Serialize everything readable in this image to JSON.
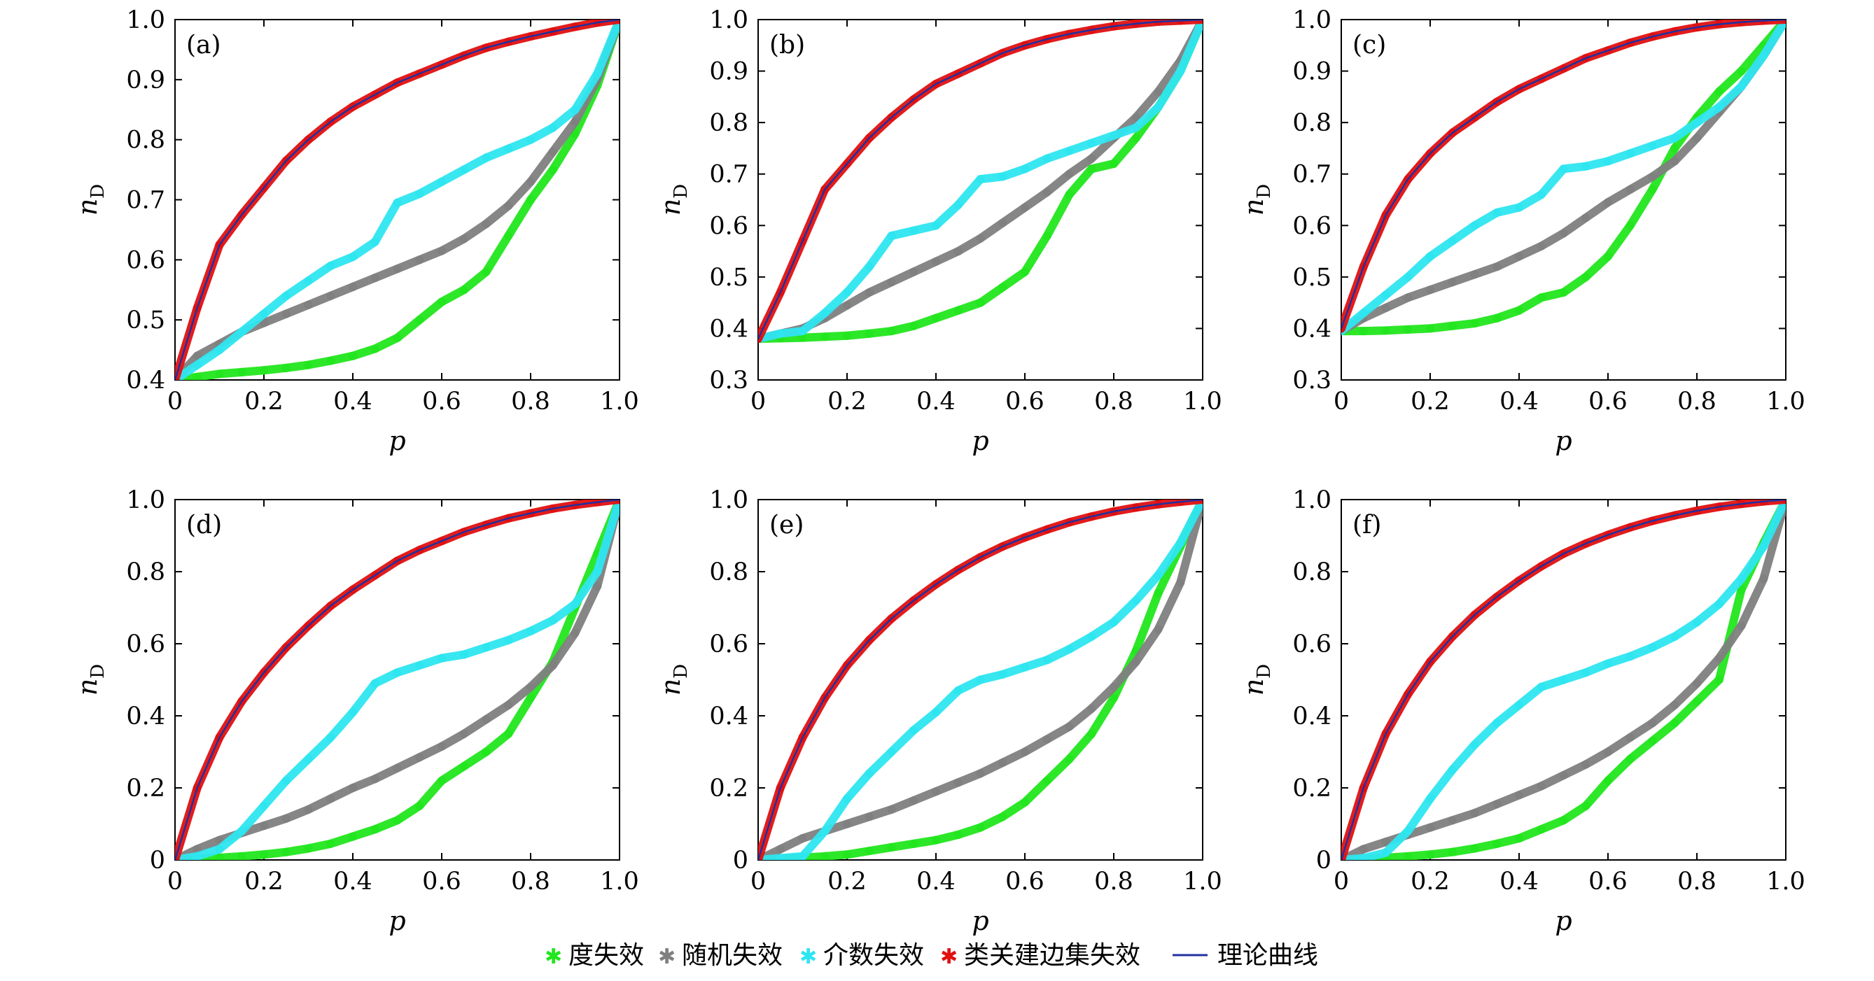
{
  "series_meta": [
    {
      "key": "degree",
      "name": "度失效",
      "color": "#22e61e"
    },
    {
      "key": "random",
      "name": "随机失效",
      "color": "#808080"
    },
    {
      "key": "betweenness",
      "name": "介数失效",
      "color": "#2ee6f0"
    },
    {
      "key": "similar",
      "name": "类关建边集失效",
      "color": "#e01010"
    },
    {
      "key": "theory",
      "name": "理论曲线",
      "color": "#2030a0"
    }
  ],
  "chart_data": [
    {
      "type": "line",
      "panel": "(a)",
      "xlabel": "p",
      "ylabel": "nD",
      "xlim": [
        0,
        1
      ],
      "ylim": [
        0.4,
        1.0
      ],
      "xticks": [
        "0",
        "0.2",
        "0.4",
        "0.6",
        "0.8",
        "1.0"
      ],
      "yticks": [
        "0.4",
        "0.5",
        "0.6",
        "0.7",
        "0.8",
        "0.9",
        "1.0"
      ],
      "x": [
        0,
        0.05,
        0.1,
        0.15,
        0.2,
        0.25,
        0.3,
        0.35,
        0.4,
        0.45,
        0.5,
        0.55,
        0.6,
        0.65,
        0.7,
        0.75,
        0.8,
        0.85,
        0.9,
        0.95,
        1.0
      ],
      "series": [
        {
          "name": "度失效",
          "values": [
            0.4,
            0.405,
            0.41,
            0.413,
            0.416,
            0.42,
            0.425,
            0.432,
            0.44,
            0.452,
            0.47,
            0.5,
            0.53,
            0.55,
            0.58,
            0.64,
            0.7,
            0.75,
            0.81,
            0.89,
            1.0
          ]
        },
        {
          "name": "随机失效",
          "values": [
            0.4,
            0.44,
            0.46,
            0.48,
            0.495,
            0.51,
            0.525,
            0.54,
            0.555,
            0.57,
            0.585,
            0.6,
            0.615,
            0.635,
            0.66,
            0.69,
            0.73,
            0.78,
            0.83,
            0.9,
            1.0
          ]
        },
        {
          "name": "介数失效",
          "values": [
            0.4,
            0.425,
            0.45,
            0.48,
            0.51,
            0.54,
            0.565,
            0.59,
            0.605,
            0.63,
            0.695,
            0.71,
            0.73,
            0.75,
            0.77,
            0.785,
            0.8,
            0.82,
            0.85,
            0.91,
            1.0
          ]
        },
        {
          "name": "类关建边集失效",
          "values": [
            0.4,
            0.52,
            0.625,
            0.675,
            0.72,
            0.765,
            0.8,
            0.83,
            0.855,
            0.875,
            0.895,
            0.91,
            0.925,
            0.94,
            0.953,
            0.963,
            0.972,
            0.98,
            0.988,
            0.995,
            1.0
          ]
        },
        {
          "name": "理论曲线",
          "values": [
            0.4,
            0.52,
            0.625,
            0.675,
            0.72,
            0.765,
            0.8,
            0.83,
            0.855,
            0.875,
            0.895,
            0.91,
            0.925,
            0.94,
            0.953,
            0.963,
            0.972,
            0.98,
            0.988,
            0.995,
            1.0
          ]
        }
      ]
    },
    {
      "type": "line",
      "panel": "(b)",
      "xlabel": "p",
      "ylabel": "nD",
      "xlim": [
        0,
        1
      ],
      "ylim": [
        0.3,
        1.0
      ],
      "xticks": [
        "0",
        "0.2",
        "0.4",
        "0.6",
        "0.8",
        "1.0"
      ],
      "yticks": [
        "0.3",
        "0.4",
        "0.5",
        "0.6",
        "0.7",
        "0.8",
        "0.9",
        "1.0"
      ],
      "x": [
        0,
        0.05,
        0.1,
        0.15,
        0.2,
        0.25,
        0.3,
        0.35,
        0.4,
        0.45,
        0.5,
        0.55,
        0.6,
        0.65,
        0.7,
        0.75,
        0.8,
        0.85,
        0.9,
        0.95,
        1.0
      ],
      "series": [
        {
          "name": "度失效",
          "values": [
            0.38,
            0.381,
            0.382,
            0.384,
            0.386,
            0.39,
            0.395,
            0.405,
            0.42,
            0.435,
            0.45,
            0.48,
            0.51,
            0.58,
            0.66,
            0.71,
            0.72,
            0.77,
            0.83,
            0.9,
            1.0
          ]
        },
        {
          "name": "随机失效",
          "values": [
            0.38,
            0.39,
            0.4,
            0.42,
            0.445,
            0.47,
            0.49,
            0.51,
            0.53,
            0.55,
            0.575,
            0.605,
            0.635,
            0.665,
            0.7,
            0.73,
            0.77,
            0.81,
            0.86,
            0.92,
            1.0
          ]
        },
        {
          "name": "介数失效",
          "values": [
            0.38,
            0.39,
            0.395,
            0.43,
            0.47,
            0.52,
            0.58,
            0.59,
            0.6,
            0.64,
            0.69,
            0.695,
            0.71,
            0.73,
            0.745,
            0.76,
            0.775,
            0.79,
            0.83,
            0.9,
            1.0
          ]
        },
        {
          "name": "类关建边集失效",
          "values": [
            0.38,
            0.47,
            0.57,
            0.67,
            0.72,
            0.77,
            0.81,
            0.845,
            0.875,
            0.895,
            0.915,
            0.935,
            0.95,
            0.962,
            0.972,
            0.98,
            0.987,
            0.992,
            0.996,
            0.998,
            1.0
          ]
        },
        {
          "name": "理论曲线",
          "values": [
            0.38,
            0.47,
            0.57,
            0.67,
            0.72,
            0.77,
            0.81,
            0.845,
            0.875,
            0.895,
            0.915,
            0.935,
            0.95,
            0.962,
            0.972,
            0.98,
            0.987,
            0.992,
            0.996,
            0.998,
            1.0
          ]
        }
      ]
    },
    {
      "type": "line",
      "panel": "(c)",
      "xlabel": "p",
      "ylabel": "nD",
      "xlim": [
        0,
        1
      ],
      "ylim": [
        0.3,
        1.0
      ],
      "xticks": [
        "0",
        "0.2",
        "0.4",
        "0.6",
        "0.8",
        "1.0"
      ],
      "yticks": [
        "0.3",
        "0.4",
        "0.5",
        "0.6",
        "0.7",
        "0.8",
        "0.9",
        "1.0"
      ],
      "x": [
        0,
        0.05,
        0.1,
        0.15,
        0.2,
        0.25,
        0.3,
        0.35,
        0.4,
        0.45,
        0.5,
        0.55,
        0.6,
        0.65,
        0.7,
        0.75,
        0.8,
        0.85,
        0.9,
        0.95,
        1.0
      ],
      "series": [
        {
          "name": "度失效",
          "values": [
            0.395,
            0.395,
            0.396,
            0.398,
            0.4,
            0.405,
            0.41,
            0.42,
            0.435,
            0.46,
            0.47,
            0.5,
            0.54,
            0.6,
            0.67,
            0.75,
            0.81,
            0.86,
            0.9,
            0.95,
            1.0
          ]
        },
        {
          "name": "随机失效",
          "values": [
            0.395,
            0.42,
            0.44,
            0.46,
            0.475,
            0.49,
            0.505,
            0.52,
            0.54,
            0.56,
            0.585,
            0.615,
            0.645,
            0.67,
            0.695,
            0.725,
            0.77,
            0.82,
            0.87,
            0.93,
            1.0
          ]
        },
        {
          "name": "介数失效",
          "values": [
            0.395,
            0.43,
            0.465,
            0.5,
            0.54,
            0.57,
            0.6,
            0.625,
            0.635,
            0.66,
            0.71,
            0.715,
            0.725,
            0.74,
            0.755,
            0.77,
            0.8,
            0.83,
            0.87,
            0.93,
            1.0
          ]
        },
        {
          "name": "类关建边集失效",
          "values": [
            0.4,
            0.52,
            0.62,
            0.69,
            0.74,
            0.78,
            0.81,
            0.84,
            0.865,
            0.885,
            0.905,
            0.925,
            0.94,
            0.955,
            0.967,
            0.977,
            0.985,
            0.991,
            0.995,
            0.998,
            1.0
          ]
        },
        {
          "name": "理论曲线",
          "values": [
            0.4,
            0.52,
            0.62,
            0.69,
            0.74,
            0.78,
            0.81,
            0.84,
            0.865,
            0.885,
            0.905,
            0.925,
            0.94,
            0.955,
            0.967,
            0.977,
            0.985,
            0.991,
            0.995,
            0.998,
            1.0
          ]
        }
      ]
    },
    {
      "type": "line",
      "panel": "(d)",
      "xlabel": "p",
      "ylabel": "nD",
      "xlim": [
        0,
        1
      ],
      "ylim": [
        0,
        1.0
      ],
      "xticks": [
        "0",
        "0.2",
        "0.4",
        "0.6",
        "0.8",
        "1.0"
      ],
      "yticks": [
        "0",
        "0.2",
        "0.4",
        "0.6",
        "0.8",
        "1.0"
      ],
      "x": [
        0,
        0.05,
        0.1,
        0.15,
        0.2,
        0.25,
        0.3,
        0.35,
        0.4,
        0.45,
        0.5,
        0.55,
        0.6,
        0.65,
        0.7,
        0.75,
        0.8,
        0.85,
        0.9,
        0.95,
        1.0
      ],
      "series": [
        {
          "name": "度失效",
          "values": [
            0.0,
            0.003,
            0.006,
            0.01,
            0.015,
            0.022,
            0.032,
            0.045,
            0.065,
            0.085,
            0.11,
            0.15,
            0.22,
            0.26,
            0.3,
            0.35,
            0.45,
            0.55,
            0.7,
            0.85,
            1.0
          ]
        },
        {
          "name": "随机失效",
          "values": [
            0.0,
            0.03,
            0.055,
            0.075,
            0.095,
            0.115,
            0.14,
            0.17,
            0.2,
            0.225,
            0.255,
            0.285,
            0.315,
            0.35,
            0.39,
            0.43,
            0.48,
            0.54,
            0.63,
            0.76,
            1.0
          ]
        },
        {
          "name": "介数失效",
          "values": [
            0.0,
            0.01,
            0.03,
            0.08,
            0.15,
            0.22,
            0.28,
            0.34,
            0.41,
            0.49,
            0.52,
            0.54,
            0.56,
            0.57,
            0.59,
            0.61,
            0.635,
            0.665,
            0.71,
            0.8,
            1.0
          ]
        },
        {
          "name": "类关建边集失效",
          "values": [
            0.0,
            0.2,
            0.34,
            0.44,
            0.52,
            0.59,
            0.65,
            0.705,
            0.75,
            0.79,
            0.83,
            0.86,
            0.885,
            0.91,
            0.93,
            0.948,
            0.962,
            0.975,
            0.985,
            0.993,
            1.0
          ]
        },
        {
          "name": "理论曲线",
          "values": [
            0.0,
            0.2,
            0.34,
            0.44,
            0.52,
            0.59,
            0.65,
            0.705,
            0.75,
            0.79,
            0.83,
            0.86,
            0.885,
            0.91,
            0.93,
            0.948,
            0.962,
            0.975,
            0.985,
            0.993,
            1.0
          ]
        }
      ]
    },
    {
      "type": "line",
      "panel": "(e)",
      "xlabel": "p",
      "ylabel": "nD",
      "xlim": [
        0,
        1
      ],
      "ylim": [
        0,
        1.0
      ],
      "xticks": [
        "0",
        "0.2",
        "0.4",
        "0.6",
        "0.8",
        "1.0"
      ],
      "yticks": [
        "0",
        "0.2",
        "0.4",
        "0.6",
        "0.8",
        "1.0"
      ],
      "x": [
        0,
        0.05,
        0.1,
        0.15,
        0.2,
        0.25,
        0.3,
        0.35,
        0.4,
        0.45,
        0.5,
        0.55,
        0.6,
        0.65,
        0.7,
        0.75,
        0.8,
        0.85,
        0.9,
        0.95,
        1.0
      ],
      "series": [
        {
          "name": "度失效",
          "values": [
            0.0,
            0.003,
            0.006,
            0.01,
            0.015,
            0.025,
            0.035,
            0.045,
            0.055,
            0.07,
            0.09,
            0.12,
            0.16,
            0.22,
            0.28,
            0.35,
            0.45,
            0.58,
            0.74,
            0.87,
            1.0
          ]
        },
        {
          "name": "随机失效",
          "values": [
            0.0,
            0.03,
            0.06,
            0.08,
            0.1,
            0.12,
            0.14,
            0.165,
            0.19,
            0.215,
            0.24,
            0.27,
            0.3,
            0.335,
            0.37,
            0.42,
            0.48,
            0.55,
            0.64,
            0.77,
            1.0
          ]
        },
        {
          "name": "介数失效",
          "values": [
            0.0,
            0.005,
            0.01,
            0.08,
            0.17,
            0.24,
            0.3,
            0.36,
            0.41,
            0.47,
            0.5,
            0.515,
            0.535,
            0.555,
            0.585,
            0.62,
            0.66,
            0.72,
            0.79,
            0.88,
            1.0
          ]
        },
        {
          "name": "类关建边集失效",
          "values": [
            0.0,
            0.2,
            0.34,
            0.45,
            0.54,
            0.61,
            0.67,
            0.72,
            0.765,
            0.805,
            0.84,
            0.87,
            0.895,
            0.917,
            0.937,
            0.953,
            0.967,
            0.978,
            0.987,
            0.994,
            1.0
          ]
        },
        {
          "name": "理论曲线",
          "values": [
            0.0,
            0.2,
            0.34,
            0.45,
            0.54,
            0.61,
            0.67,
            0.72,
            0.765,
            0.805,
            0.84,
            0.87,
            0.895,
            0.917,
            0.937,
            0.953,
            0.967,
            0.978,
            0.987,
            0.994,
            1.0
          ]
        }
      ]
    },
    {
      "type": "line",
      "panel": "(f)",
      "xlabel": "p",
      "ylabel": "nD",
      "xlim": [
        0,
        1
      ],
      "ylim": [
        0,
        1.0
      ],
      "xticks": [
        "0",
        "0.2",
        "0.4",
        "0.6",
        "0.8",
        "1.0"
      ],
      "yticks": [
        "0",
        "0.2",
        "0.4",
        "0.6",
        "0.8",
        "1.0"
      ],
      "x": [
        0,
        0.05,
        0.1,
        0.15,
        0.2,
        0.25,
        0.3,
        0.35,
        0.4,
        0.45,
        0.5,
        0.55,
        0.6,
        0.65,
        0.7,
        0.75,
        0.8,
        0.85,
        0.9,
        0.95,
        1.0
      ],
      "series": [
        {
          "name": "度失效",
          "values": [
            0.0,
            0.003,
            0.006,
            0.01,
            0.015,
            0.022,
            0.032,
            0.045,
            0.06,
            0.085,
            0.11,
            0.15,
            0.22,
            0.28,
            0.33,
            0.38,
            0.44,
            0.5,
            0.75,
            0.88,
            1.0
          ]
        },
        {
          "name": "随机失效",
          "values": [
            0.0,
            0.03,
            0.05,
            0.07,
            0.09,
            0.11,
            0.13,
            0.155,
            0.18,
            0.205,
            0.235,
            0.265,
            0.3,
            0.34,
            0.38,
            0.43,
            0.49,
            0.56,
            0.65,
            0.78,
            1.0
          ]
        },
        {
          "name": "介数失效",
          "values": [
            0.0,
            0.005,
            0.02,
            0.08,
            0.17,
            0.25,
            0.32,
            0.38,
            0.43,
            0.48,
            0.5,
            0.52,
            0.545,
            0.565,
            0.59,
            0.62,
            0.66,
            0.71,
            0.78,
            0.87,
            1.0
          ]
        },
        {
          "name": "类关建边集失效",
          "values": [
            0.0,
            0.2,
            0.35,
            0.46,
            0.55,
            0.62,
            0.68,
            0.73,
            0.775,
            0.815,
            0.85,
            0.878,
            0.902,
            0.923,
            0.941,
            0.956,
            0.969,
            0.98,
            0.988,
            0.995,
            1.0
          ]
        },
        {
          "name": "理论曲线",
          "values": [
            0.0,
            0.2,
            0.35,
            0.46,
            0.55,
            0.62,
            0.68,
            0.73,
            0.775,
            0.815,
            0.85,
            0.878,
            0.902,
            0.923,
            0.941,
            0.956,
            0.969,
            0.98,
            0.988,
            0.995,
            1.0
          ]
        }
      ]
    }
  ]
}
